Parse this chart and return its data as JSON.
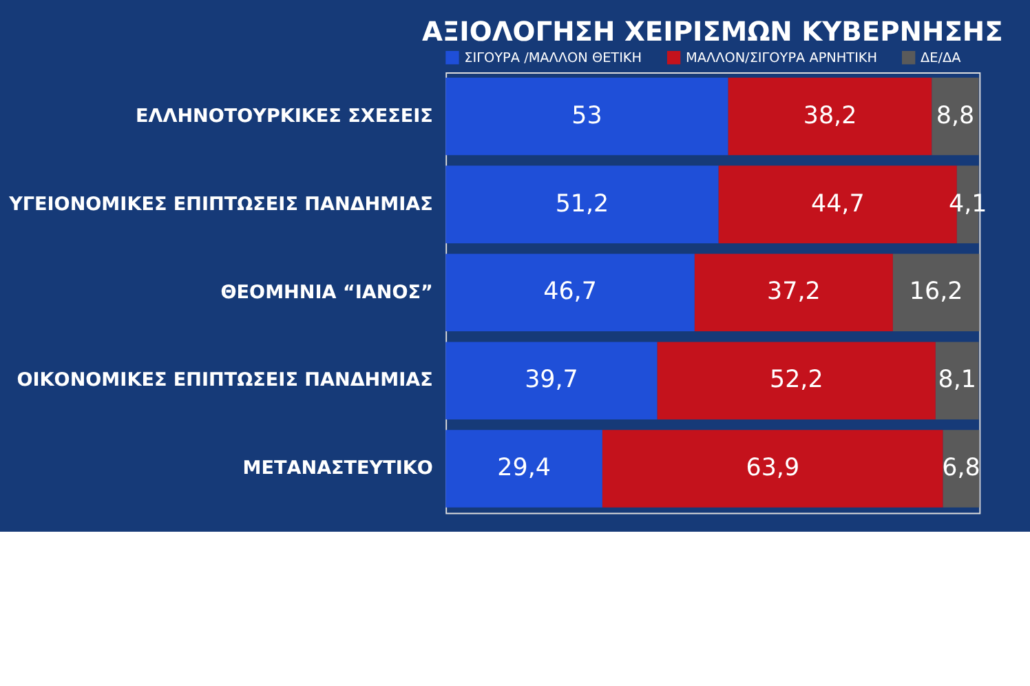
{
  "chart_data": {
    "type": "bar",
    "orientation": "horizontal",
    "stacked": true,
    "data_labels": true,
    "legend": "top right",
    "title": "ΑΞΙΟΛΟΓΗΣΗ ΧΕΙΡΙΣΜΩΝ ΚΥΒΕΡΝΗΣΗΣ",
    "categories": [
      "ΕΛΛΗΝΟΤΟΥΡΚΙΚΕΣ ΣΧΕΣΕΙΣ",
      "ΥΓΕΙΟΝΟΜΙΚΕΣ ΕΠΙΠΤΩΣΕΙΣ ΠΑΝΔΗΜΙΑΣ",
      "ΘΕΟΜΗΝΙΑ “ΙΑΝΟΣ”",
      "ΟΙΚΟΝΟΜΙΚΕΣ ΕΠΙΠΤΩΣΕΙΣ ΠΑΝΔΗΜΙΑΣ",
      "ΜΕΤΑΝΑΣΤΕΥΤΙΚΟ"
    ],
    "series": [
      {
        "name": "ΣΙΓΟΥΡΑ /ΜΑΛΛΟΝ ΘΕΤΙΚΗ",
        "color": "#1f4fd8",
        "values": [
          53,
          51.2,
          46.7,
          39.7,
          29.4
        ],
        "value_labels": [
          "53",
          "51,2",
          "46,7",
          "39,7",
          "29,4"
        ]
      },
      {
        "name": "ΜΑΛΛΟΝ/ΣΙΓΟΥΡΑ ΑΡΝΗΤΙΚΗ",
        "color": "#c4121c",
        "values": [
          38.2,
          44.7,
          37.2,
          52.2,
          63.9
        ],
        "value_labels": [
          "38,2",
          "44,7",
          "37,2",
          "52,2",
          "63,9"
        ]
      },
      {
        "name": "ΔΕ/ΔΑ",
        "color": "#5a5a5a",
        "values": [
          8.8,
          4.1,
          16.2,
          8.1,
          6.8
        ],
        "value_labels": [
          "8,8",
          "4,1",
          "16,2",
          "8,1",
          "6,8"
        ]
      }
    ]
  }
}
